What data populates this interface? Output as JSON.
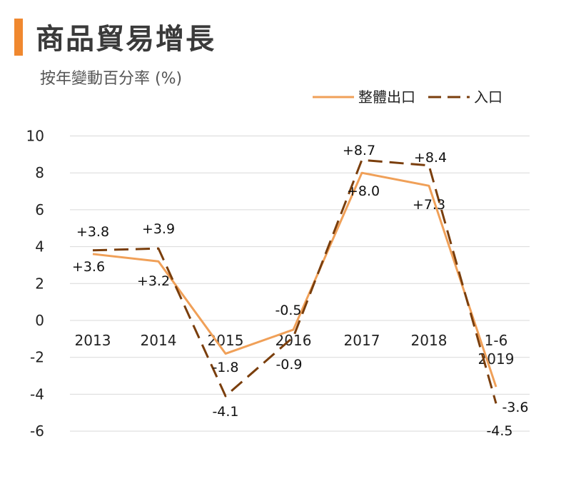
{
  "header": {
    "title": "商品貿易增長",
    "subtitle": "按年變動百分率 (%)",
    "accent_color": "#f0882f"
  },
  "chart_data": {
    "type": "line",
    "title": "商品貿易增長",
    "subtitle": "按年變動百分率 (%)",
    "categories": [
      "2013",
      "2014",
      "2015",
      "2016",
      "2017",
      "2018",
      "1-6\n2019"
    ],
    "ylim": [
      -6,
      10
    ],
    "yticks": [
      10,
      8,
      6,
      4,
      2,
      0,
      -2,
      -4,
      -6
    ],
    "grid": true,
    "legend": "top-right",
    "series": [
      {
        "name": "整體出口",
        "values": [
          3.6,
          3.2,
          -1.8,
          -0.5,
          8.0,
          7.3,
          -3.6
        ],
        "labels": [
          "+3.6",
          "+3.2",
          "-1.8",
          "-0.5",
          "+8.0",
          "+7.3",
          "-3.6"
        ],
        "color": "#f0a058",
        "style": "solid"
      },
      {
        "name": "入口",
        "values": [
          3.8,
          3.9,
          -4.1,
          -0.9,
          8.7,
          8.4,
          -4.5
        ],
        "labels": [
          "+3.8",
          "+3.9",
          "-4.1",
          "-0.9",
          "+8.7",
          "+8.4",
          "-4.5"
        ],
        "color": "#7a3e0c",
        "style": "dashed"
      }
    ]
  }
}
